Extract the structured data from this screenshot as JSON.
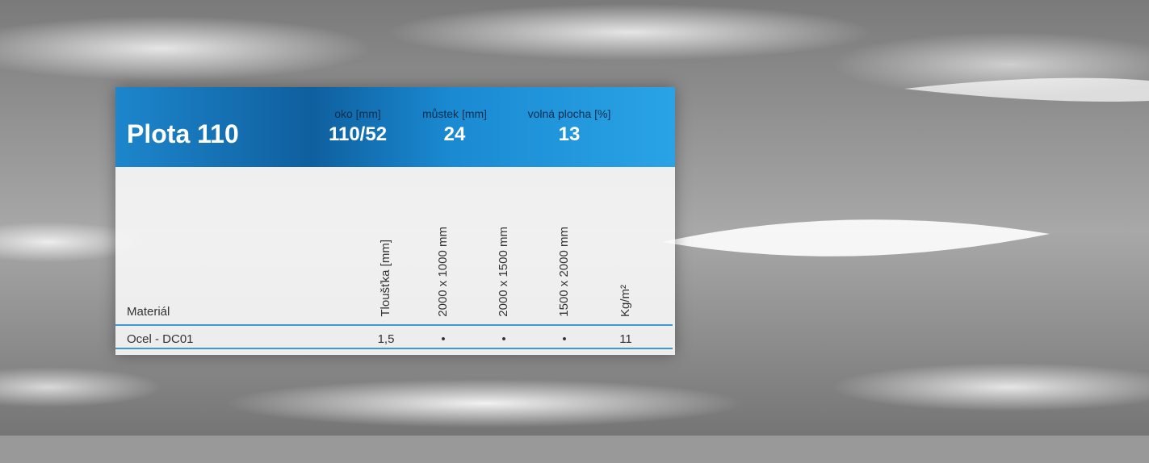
{
  "header": {
    "title": "Plota 110",
    "specs": [
      {
        "label": "oko [mm]",
        "value": "110/52"
      },
      {
        "label": "můstek [mm]",
        "value": 24
      },
      {
        "label": "volná plocha [%]",
        "value": 13
      }
    ]
  },
  "table": {
    "columns": [
      "Materiál",
      "Tloušťka [mm]",
      "2000 x 1000 mm",
      "2000 x 1500 mm",
      "1500 x 2000 mm",
      "Kg/m²"
    ],
    "rows": [
      [
        "Ocel - DC01",
        "1,5",
        "•",
        "•",
        "•",
        11
      ]
    ]
  }
}
